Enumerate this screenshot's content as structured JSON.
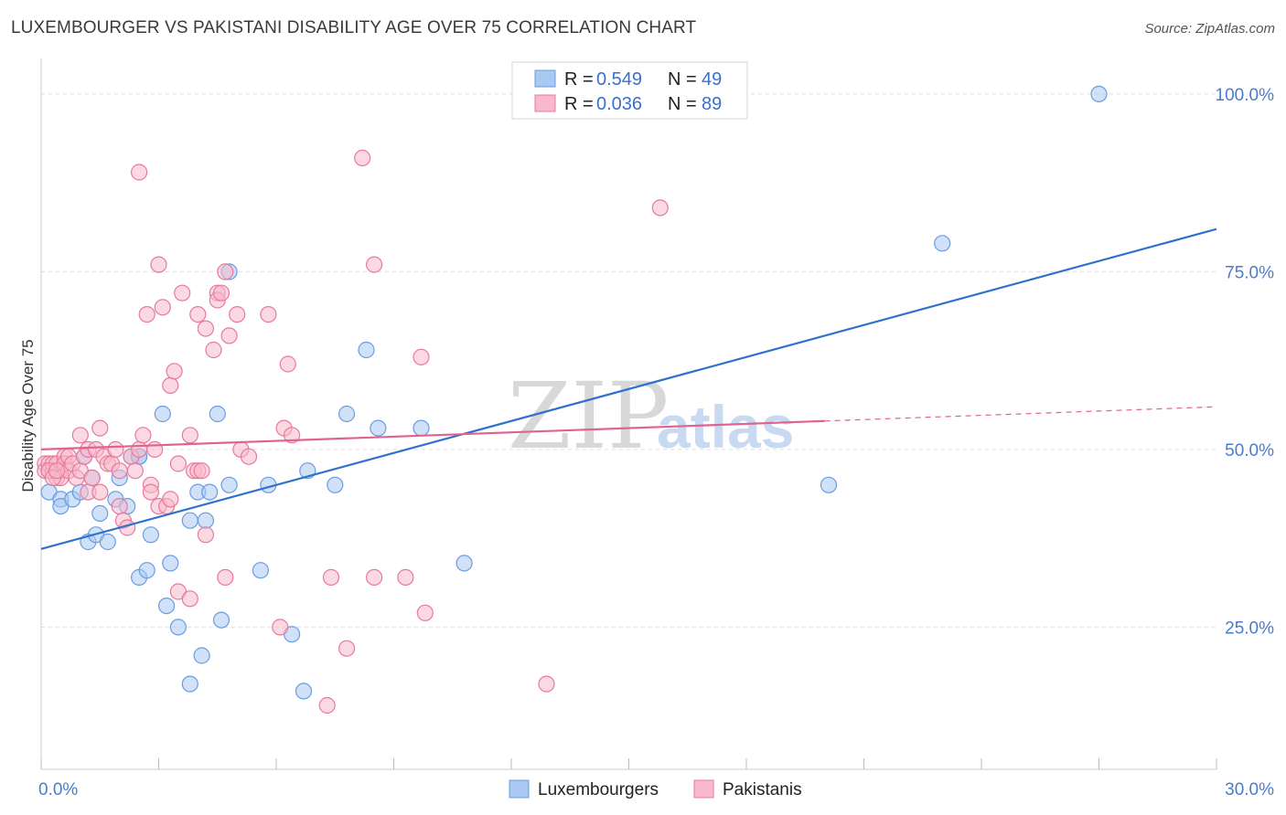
{
  "title": "LUXEMBOURGER VS PAKISTANI DISABILITY AGE OVER 75 CORRELATION CHART",
  "source": "Source: ZipAtlas.com",
  "watermark": {
    "zip": "ZIP",
    "atlas": "atlas"
  },
  "legend": {
    "r_label": "R =",
    "n_label": "N =",
    "rows": [
      {
        "r": "0.549",
        "n": "49",
        "color": "#a9c8f2"
      },
      {
        "r": "0.036",
        "n": "89",
        "color": "#f7b9cb"
      }
    ]
  },
  "chart_data": {
    "type": "scatter",
    "title": "LUXEMBOURGER VS PAKISTANI DISABILITY AGE OVER 75 CORRELATION CHART",
    "xlabel": "",
    "ylabel": "Disability Age Over 75",
    "xlim": [
      0,
      30
    ],
    "ylim": [
      5,
      105
    ],
    "x_tick_labels": [
      "0.0%",
      "30.0%"
    ],
    "y_tick_labels": [
      "25.0%",
      "50.0%",
      "75.0%",
      "100.0%"
    ],
    "y_ticks": [
      25,
      50,
      75,
      100
    ],
    "grid": true,
    "legend_position": "top-center",
    "series": [
      {
        "name": "Luxembourgers",
        "color": "#6a9de0",
        "fill": "#a9c8f2",
        "trend": {
          "x": [
            0,
            30
          ],
          "y": [
            36,
            81
          ],
          "dash_from": null
        },
        "points": [
          [
            0.2,
            44
          ],
          [
            0.5,
            43
          ],
          [
            0.5,
            42
          ],
          [
            0.8,
            43
          ],
          [
            1.0,
            44
          ],
          [
            1.1,
            49
          ],
          [
            1.2,
            37
          ],
          [
            1.3,
            46
          ],
          [
            1.4,
            38
          ],
          [
            1.5,
            41
          ],
          [
            1.7,
            37
          ],
          [
            1.9,
            43
          ],
          [
            2.0,
            46
          ],
          [
            2.2,
            42
          ],
          [
            2.3,
            49
          ],
          [
            2.5,
            49
          ],
          [
            2.5,
            49
          ],
          [
            2.5,
            32
          ],
          [
            2.7,
            33
          ],
          [
            2.8,
            38
          ],
          [
            3.1,
            55
          ],
          [
            3.2,
            28
          ],
          [
            3.3,
            34
          ],
          [
            3.5,
            25
          ],
          [
            3.8,
            40
          ],
          [
            3.8,
            17
          ],
          [
            4.0,
            44
          ],
          [
            4.1,
            21
          ],
          [
            4.2,
            40
          ],
          [
            4.3,
            44
          ],
          [
            4.5,
            55
          ],
          [
            4.6,
            26
          ],
          [
            4.8,
            45
          ],
          [
            4.8,
            75
          ],
          [
            5.6,
            33
          ],
          [
            5.8,
            45
          ],
          [
            6.4,
            24
          ],
          [
            6.7,
            16
          ],
          [
            6.8,
            47
          ],
          [
            7.5,
            45
          ],
          [
            7.8,
            55
          ],
          [
            8.3,
            64
          ],
          [
            8.6,
            53
          ],
          [
            9.7,
            53
          ],
          [
            10.8,
            34
          ],
          [
            20.1,
            45
          ],
          [
            23.0,
            79
          ],
          [
            27.0,
            100
          ],
          [
            0.3,
            47
          ]
        ]
      },
      {
        "name": "Pakistanis",
        "color": "#e8799e",
        "fill": "#f7b9cb",
        "trend": {
          "x": [
            0,
            20
          ],
          "y": [
            50,
            54
          ],
          "dash_to": [
            30,
            56
          ]
        },
        "points": [
          [
            0.1,
            48
          ],
          [
            0.1,
            47
          ],
          [
            0.2,
            48
          ],
          [
            0.2,
            47
          ],
          [
            0.3,
            47
          ],
          [
            0.3,
            48
          ],
          [
            0.4,
            46
          ],
          [
            0.4,
            48
          ],
          [
            0.5,
            47
          ],
          [
            0.5,
            46
          ],
          [
            0.6,
            49
          ],
          [
            0.6,
            48
          ],
          [
            0.7,
            49
          ],
          [
            0.7,
            47
          ],
          [
            0.8,
            48
          ],
          [
            0.9,
            46
          ],
          [
            1.0,
            47
          ],
          [
            1.0,
            52
          ],
          [
            1.1,
            49
          ],
          [
            1.2,
            50
          ],
          [
            1.2,
            44
          ],
          [
            1.3,
            46
          ],
          [
            1.4,
            50
          ],
          [
            1.5,
            44
          ],
          [
            1.5,
            53
          ],
          [
            1.6,
            49
          ],
          [
            1.7,
            48
          ],
          [
            1.8,
            48
          ],
          [
            1.9,
            50
          ],
          [
            2.0,
            42
          ],
          [
            2.0,
            47
          ],
          [
            2.1,
            40
          ],
          [
            2.2,
            39
          ],
          [
            2.3,
            49
          ],
          [
            2.4,
            47
          ],
          [
            2.5,
            89
          ],
          [
            2.5,
            50
          ],
          [
            2.6,
            52
          ],
          [
            2.7,
            69
          ],
          [
            2.8,
            45
          ],
          [
            2.8,
            44
          ],
          [
            2.9,
            50
          ],
          [
            3.0,
            42
          ],
          [
            3.0,
            76
          ],
          [
            3.1,
            70
          ],
          [
            3.2,
            42
          ],
          [
            3.3,
            43
          ],
          [
            3.3,
            59
          ],
          [
            3.4,
            61
          ],
          [
            3.5,
            48
          ],
          [
            3.5,
            30
          ],
          [
            3.6,
            72
          ],
          [
            3.8,
            29
          ],
          [
            3.8,
            52
          ],
          [
            3.9,
            47
          ],
          [
            4.0,
            69
          ],
          [
            4.0,
            47
          ],
          [
            4.1,
            47
          ],
          [
            4.2,
            67
          ],
          [
            4.2,
            38
          ],
          [
            4.4,
            64
          ],
          [
            4.5,
            72
          ],
          [
            4.5,
            71
          ],
          [
            4.6,
            72
          ],
          [
            4.7,
            75
          ],
          [
            4.7,
            32
          ],
          [
            4.8,
            66
          ],
          [
            5.0,
            69
          ],
          [
            5.1,
            50
          ],
          [
            5.3,
            49
          ],
          [
            5.8,
            69
          ],
          [
            6.1,
            25
          ],
          [
            6.2,
            53
          ],
          [
            6.3,
            62
          ],
          [
            6.4,
            52
          ],
          [
            7.3,
            14
          ],
          [
            7.4,
            32
          ],
          [
            7.8,
            22
          ],
          [
            8.2,
            91
          ],
          [
            8.5,
            76
          ],
          [
            8.5,
            32
          ],
          [
            9.3,
            32
          ],
          [
            9.7,
            63
          ],
          [
            9.8,
            27
          ],
          [
            12.9,
            17
          ],
          [
            15.8,
            84
          ],
          [
            0.2,
            47
          ],
          [
            0.3,
            46
          ],
          [
            0.4,
            47
          ]
        ]
      }
    ]
  }
}
